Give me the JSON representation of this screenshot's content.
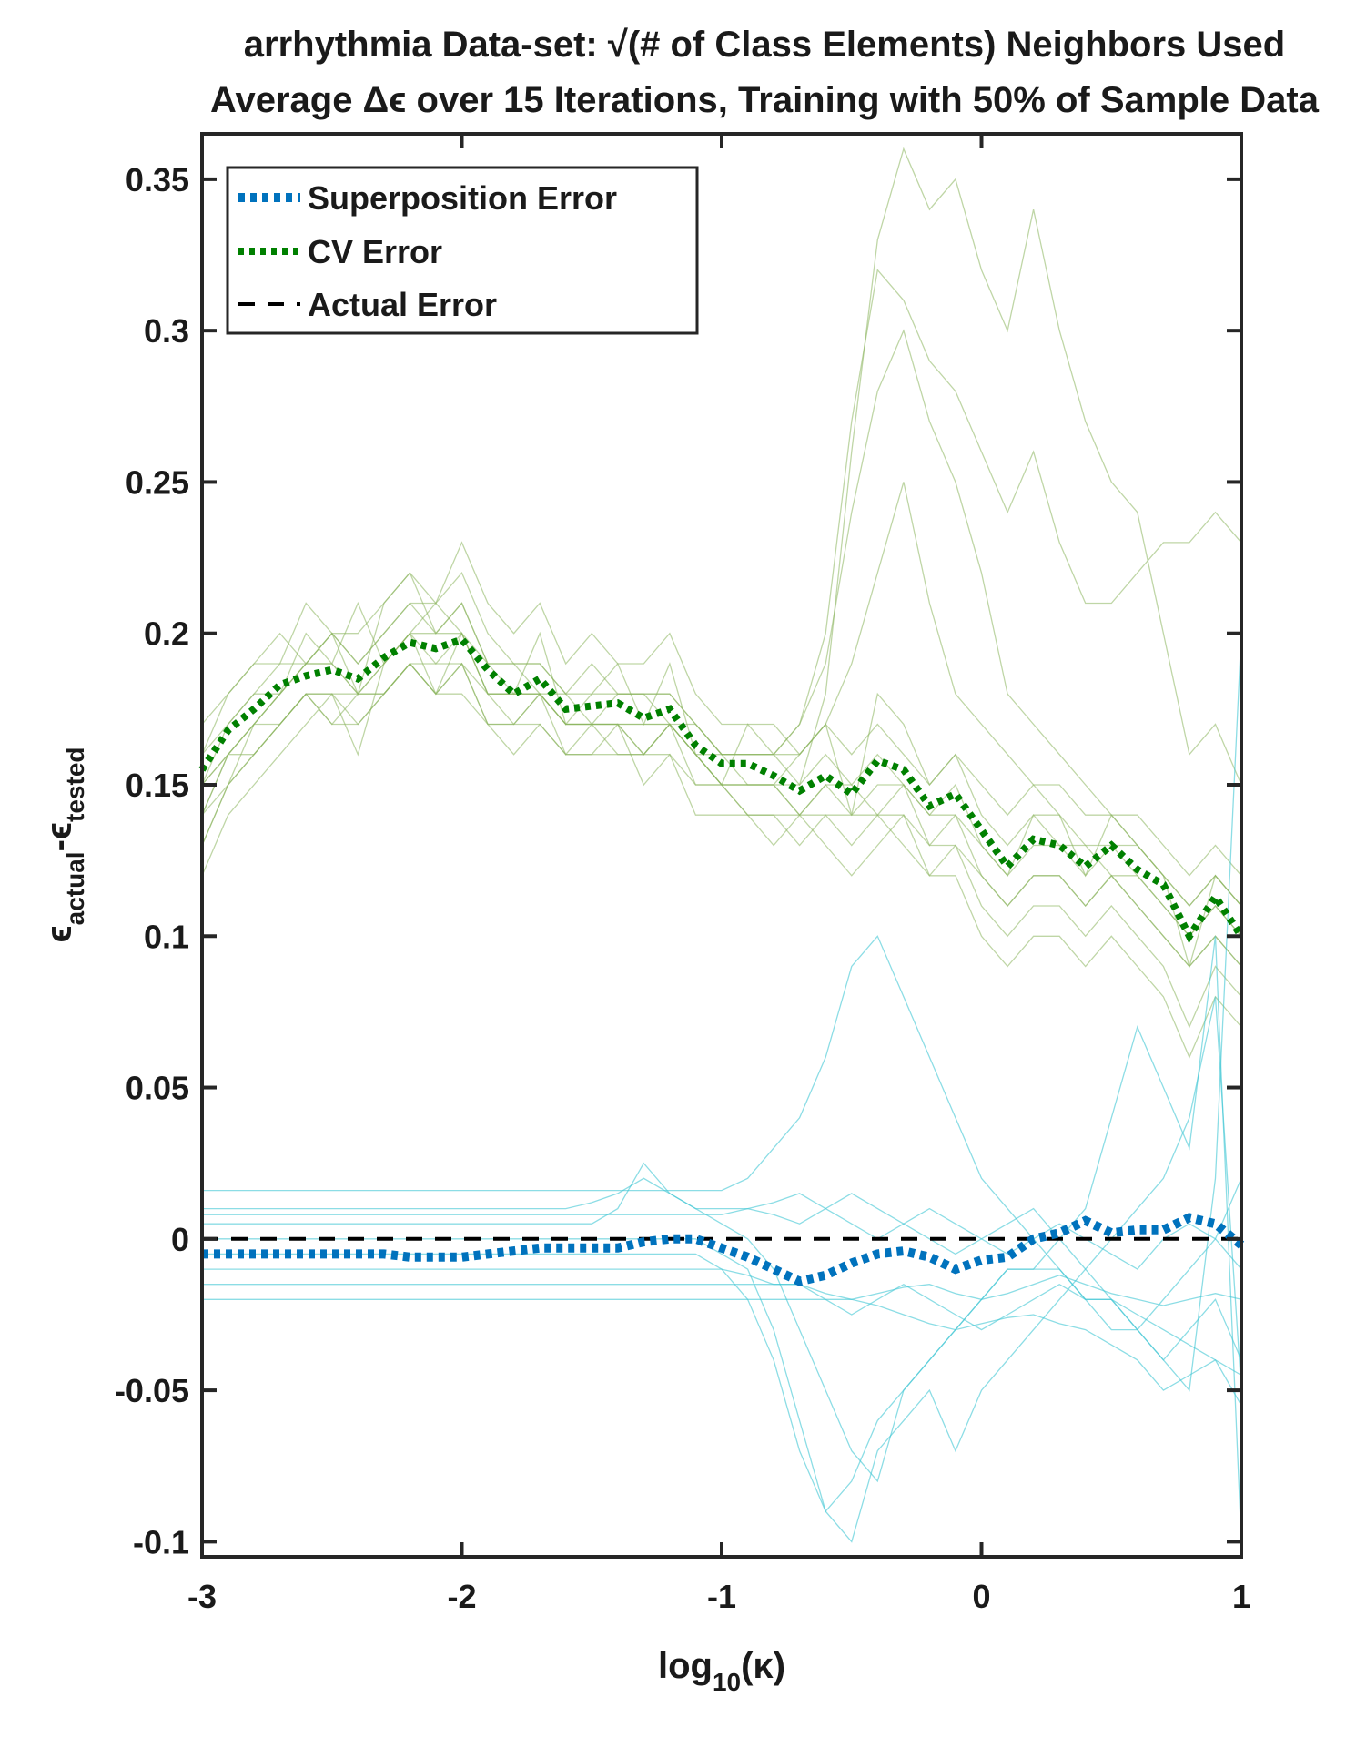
{
  "chart_data": {
    "type": "line",
    "title": "arrhythmia Data-set: √(# of Class Elements) Neighbors Used",
    "subtitle": "Average Δϵ over 15 Iterations, Training with 50% of Sample Data",
    "xlabel": {
      "base": "log",
      "sub": "10",
      "rest": "(κ)"
    },
    "ylabel": {
      "eps1": "ϵ",
      "sub1": "actual",
      "minus": "-",
      "eps2": "ϵ",
      "sub2": "tested"
    },
    "xlim": [
      -3,
      1
    ],
    "ylim": [
      -0.105,
      0.365
    ],
    "x_ticks": [
      -3,
      -2,
      -1,
      0,
      1
    ],
    "x_tick_labels": [
      "-3",
      "-2",
      "-1",
      "0",
      "1"
    ],
    "y_ticks": [
      -0.1,
      -0.05,
      0,
      0.05,
      0.1,
      0.15,
      0.2,
      0.25,
      0.3,
      0.35
    ],
    "y_tick_labels": [
      "-0.1",
      "-0.05",
      "0",
      "0.05",
      "0.1",
      "0.15",
      "0.2",
      "0.25",
      "0.3",
      "0.35"
    ],
    "grid": false,
    "legend_position": "top-left",
    "colors": {
      "superposition": "#0072bd",
      "cv": "#008000",
      "actual": "#000000",
      "superposition_iterations": "#3fc6d3",
      "cv_iterations": "#8ab55c"
    },
    "x": [
      -3.0,
      -2.9,
      -2.8,
      -2.7,
      -2.6,
      -2.5,
      -2.4,
      -2.3,
      -2.2,
      -2.1,
      -2.0,
      -1.9,
      -1.8,
      -1.7,
      -1.6,
      -1.5,
      -1.4,
      -1.3,
      -1.2,
      -1.1,
      -1.0,
      -0.9,
      -0.8,
      -0.7,
      -0.6,
      -0.5,
      -0.4,
      -0.3,
      -0.2,
      -0.1,
      0.0,
      0.1,
      0.2,
      0.3,
      0.4,
      0.5,
      0.6,
      0.7,
      0.8,
      0.9,
      1.0
    ],
    "series": [
      {
        "name": "Superposition Error",
        "style": "dotted-thick",
        "values": [
          -0.005,
          -0.005,
          -0.005,
          -0.005,
          -0.005,
          -0.005,
          -0.005,
          -0.005,
          -0.006,
          -0.006,
          -0.006,
          -0.005,
          -0.004,
          -0.003,
          -0.003,
          -0.003,
          -0.003,
          -0.001,
          0.0,
          0.0,
          -0.003,
          -0.006,
          -0.01,
          -0.014,
          -0.012,
          -0.008,
          -0.005,
          -0.004,
          -0.006,
          -0.01,
          -0.007,
          -0.006,
          0.0,
          0.002,
          0.006,
          0.002,
          0.003,
          0.003,
          0.007,
          0.005,
          -0.002
        ]
      },
      {
        "name": "CV Error",
        "style": "dotted-thick",
        "values": [
          0.155,
          0.168,
          0.175,
          0.183,
          0.186,
          0.188,
          0.185,
          0.192,
          0.197,
          0.195,
          0.198,
          0.188,
          0.18,
          0.185,
          0.175,
          0.176,
          0.177,
          0.172,
          0.175,
          0.163,
          0.157,
          0.157,
          0.153,
          0.148,
          0.153,
          0.147,
          0.158,
          0.155,
          0.143,
          0.147,
          0.135,
          0.123,
          0.132,
          0.13,
          0.123,
          0.13,
          0.122,
          0.117,
          0.1,
          0.113,
          0.1
        ]
      },
      {
        "name": "Actual Error",
        "style": "dashed",
        "values": [
          0,
          0,
          0,
          0,
          0,
          0,
          0,
          0,
          0,
          0,
          0,
          0,
          0,
          0,
          0,
          0,
          0,
          0,
          0,
          0,
          0,
          0,
          0,
          0,
          0,
          0,
          0,
          0,
          0,
          0,
          0,
          0,
          0,
          0,
          0,
          0,
          0,
          0,
          0,
          0,
          0
        ]
      }
    ],
    "iteration_series": {
      "cv": [
        [
          0.13,
          0.15,
          0.17,
          0.18,
          0.2,
          0.19,
          0.21,
          0.19,
          0.2,
          0.21,
          0.2,
          0.19,
          0.18,
          0.2,
          0.17,
          0.18,
          0.19,
          0.17,
          0.19,
          0.16,
          0.15,
          0.17,
          0.16,
          0.16,
          0.17,
          0.14,
          0.18,
          0.17,
          0.15,
          0.16,
          0.14,
          0.13,
          0.14,
          0.14,
          0.12,
          0.14,
          0.13,
          0.12,
          0.09,
          0.12,
          0.11
        ],
        [
          0.17,
          0.18,
          0.19,
          0.2,
          0.19,
          0.2,
          0.18,
          0.21,
          0.22,
          0.2,
          0.21,
          0.19,
          0.19,
          0.18,
          0.18,
          0.17,
          0.18,
          0.18,
          0.17,
          0.17,
          0.16,
          0.15,
          0.15,
          0.14,
          0.15,
          0.15,
          0.14,
          0.15,
          0.13,
          0.14,
          0.12,
          0.11,
          0.12,
          0.12,
          0.11,
          0.12,
          0.11,
          0.1,
          0.09,
          0.1,
          0.09
        ],
        [
          0.14,
          0.16,
          0.16,
          0.17,
          0.18,
          0.17,
          0.17,
          0.18,
          0.19,
          0.18,
          0.19,
          0.17,
          0.17,
          0.18,
          0.16,
          0.17,
          0.16,
          0.16,
          0.17,
          0.15,
          0.15,
          0.14,
          0.14,
          0.13,
          0.14,
          0.13,
          0.14,
          0.13,
          0.12,
          0.13,
          0.11,
          0.1,
          0.11,
          0.11,
          0.1,
          0.11,
          0.1,
          0.09,
          0.07,
          0.09,
          0.08
        ],
        [
          0.16,
          0.17,
          0.18,
          0.19,
          0.19,
          0.2,
          0.19,
          0.2,
          0.21,
          0.21,
          0.22,
          0.2,
          0.19,
          0.19,
          0.18,
          0.19,
          0.18,
          0.18,
          0.18,
          0.17,
          0.16,
          0.16,
          0.16,
          0.15,
          0.16,
          0.15,
          0.16,
          0.15,
          0.14,
          0.15,
          0.13,
          0.12,
          0.14,
          0.13,
          0.13,
          0.13,
          0.13,
          0.12,
          0.11,
          0.12,
          0.11
        ],
        [
          0.15,
          0.16,
          0.17,
          0.17,
          0.18,
          0.18,
          0.18,
          0.18,
          0.19,
          0.19,
          0.19,
          0.18,
          0.17,
          0.18,
          0.17,
          0.17,
          0.17,
          0.16,
          0.17,
          0.16,
          0.15,
          0.15,
          0.15,
          0.14,
          0.15,
          0.14,
          0.15,
          0.15,
          0.14,
          0.14,
          0.13,
          0.12,
          0.13,
          0.13,
          0.12,
          0.13,
          0.12,
          0.11,
          0.1,
          0.11,
          0.1
        ],
        [
          0.12,
          0.14,
          0.15,
          0.16,
          0.17,
          0.18,
          0.16,
          0.19,
          0.2,
          0.18,
          0.19,
          0.17,
          0.16,
          0.17,
          0.16,
          0.16,
          0.17,
          0.15,
          0.16,
          0.14,
          0.14,
          0.14,
          0.13,
          0.14,
          0.13,
          0.12,
          0.13,
          0.14,
          0.12,
          0.12,
          0.1,
          0.09,
          0.1,
          0.1,
          0.09,
          0.1,
          0.09,
          0.08,
          0.06,
          0.08,
          0.07
        ],
        [
          0.16,
          0.18,
          0.19,
          0.19,
          0.21,
          0.2,
          0.2,
          0.21,
          0.22,
          0.21,
          0.23,
          0.21,
          0.2,
          0.21,
          0.19,
          0.2,
          0.19,
          0.19,
          0.2,
          0.18,
          0.17,
          0.17,
          0.17,
          0.16,
          0.17,
          0.16,
          0.17,
          0.16,
          0.15,
          0.16,
          0.15,
          0.14,
          0.15,
          0.15,
          0.14,
          0.14,
          0.14,
          0.13,
          0.12,
          0.13,
          0.12
        ],
        [
          0.14,
          0.15,
          0.16,
          0.17,
          0.18,
          0.17,
          0.18,
          0.18,
          0.19,
          0.18,
          0.18,
          0.17,
          0.17,
          0.17,
          0.16,
          0.16,
          0.16,
          0.16,
          0.16,
          0.15,
          0.15,
          0.14,
          0.14,
          0.14,
          0.14,
          0.14,
          0.14,
          0.14,
          0.13,
          0.13,
          0.12,
          0.11,
          0.12,
          0.12,
          0.11,
          0.12,
          0.11,
          0.1,
          0.09,
          0.1,
          0.09
        ],
        [
          0.15,
          0.17,
          0.18,
          0.18,
          0.19,
          0.2,
          0.19,
          0.2,
          0.21,
          0.2,
          0.21,
          0.19,
          0.19,
          0.19,
          0.18,
          0.18,
          0.18,
          0.18,
          0.18,
          0.17,
          0.16,
          0.16,
          0.16,
          0.17,
          0.19,
          0.24,
          0.28,
          0.3,
          0.27,
          0.25,
          0.22,
          0.18,
          0.17,
          0.16,
          0.15,
          0.14,
          0.13,
          0.12,
          0.11,
          0.12,
          0.11
        ],
        [
          0.13,
          0.15,
          0.16,
          0.17,
          0.18,
          0.18,
          0.17,
          0.18,
          0.19,
          0.18,
          0.2,
          0.18,
          0.18,
          0.18,
          0.17,
          0.17,
          0.17,
          0.16,
          0.17,
          0.16,
          0.15,
          0.15,
          0.15,
          0.15,
          0.18,
          0.26,
          0.33,
          0.36,
          0.34,
          0.35,
          0.32,
          0.3,
          0.34,
          0.3,
          0.27,
          0.25,
          0.24,
          0.2,
          0.16,
          0.17,
          0.15
        ],
        [
          0.14,
          0.16,
          0.17,
          0.18,
          0.19,
          0.19,
          0.18,
          0.19,
          0.2,
          0.19,
          0.2,
          0.18,
          0.18,
          0.18,
          0.17,
          0.17,
          0.17,
          0.17,
          0.17,
          0.16,
          0.16,
          0.16,
          0.16,
          0.17,
          0.2,
          0.27,
          0.32,
          0.31,
          0.29,
          0.28,
          0.26,
          0.24,
          0.26,
          0.23,
          0.21,
          0.21,
          0.22,
          0.23,
          0.23,
          0.24,
          0.23
        ],
        [
          0.15,
          0.16,
          0.17,
          0.18,
          0.19,
          0.19,
          0.18,
          0.19,
          0.2,
          0.2,
          0.2,
          0.18,
          0.18,
          0.18,
          0.17,
          0.17,
          0.17,
          0.17,
          0.17,
          0.16,
          0.15,
          0.15,
          0.15,
          0.16,
          0.17,
          0.19,
          0.22,
          0.25,
          0.21,
          0.18,
          0.17,
          0.16,
          0.15,
          0.14,
          0.13,
          0.12,
          0.12,
          0.11,
          0.1,
          0.11,
          0.1
        ]
      ],
      "superposition": [
        [
          0.016,
          0.016,
          0.016,
          0.016,
          0.016,
          0.016,
          0.016,
          0.016,
          0.016,
          0.016,
          0.016,
          0.016,
          0.016,
          0.016,
          0.016,
          0.016,
          0.016,
          0.016,
          0.016,
          0.016,
          0.016,
          0.02,
          0.03,
          0.04,
          0.06,
          0.09,
          0.1,
          0.08,
          0.06,
          0.04,
          0.02,
          0.01,
          0.0,
          -0.01,
          -0.02,
          -0.03,
          -0.03,
          -0.04,
          -0.03,
          -0.02,
          -0.04
        ],
        [
          0.01,
          0.01,
          0.01,
          0.01,
          0.01,
          0.01,
          0.01,
          0.01,
          0.01,
          0.01,
          0.01,
          0.01,
          0.01,
          0.01,
          0.01,
          0.012,
          0.015,
          0.02,
          0.015,
          0.01,
          0.01,
          0.01,
          0.008,
          0.005,
          0.01,
          0.015,
          0.01,
          0.005,
          0.0,
          -0.005,
          0.0,
          0.005,
          0.01,
          0.0,
          -0.01,
          -0.02,
          -0.03,
          -0.04,
          -0.05,
          0.02,
          0.2
        ],
        [
          0.005,
          0.005,
          0.005,
          0.005,
          0.005,
          0.005,
          0.005,
          0.005,
          0.005,
          0.005,
          0.005,
          0.005,
          0.005,
          0.005,
          0.005,
          0.005,
          0.01,
          0.025,
          0.015,
          0.01,
          0.005,
          0.0,
          -0.01,
          -0.03,
          -0.05,
          -0.07,
          -0.08,
          -0.05,
          -0.04,
          -0.03,
          -0.02,
          -0.01,
          -0.01,
          0.0,
          0.01,
          0.04,
          0.07,
          0.05,
          0.03,
          0.1,
          -0.1
        ],
        [
          0.0,
          0.0,
          0.0,
          0.0,
          0.0,
          0.0,
          0.0,
          0.0,
          0.0,
          0.0,
          0.0,
          0.0,
          0.0,
          0.0,
          0.0,
          0.0,
          0.0,
          0.0,
          0.0,
          0.0,
          -0.005,
          -0.01,
          -0.03,
          -0.06,
          -0.09,
          -0.08,
          -0.06,
          -0.05,
          -0.04,
          -0.03,
          -0.02,
          -0.01,
          -0.01,
          -0.01,
          -0.02,
          -0.02,
          -0.03,
          -0.02,
          -0.01,
          0.0,
          0.02
        ],
        [
          -0.005,
          -0.005,
          -0.005,
          -0.005,
          -0.005,
          -0.005,
          -0.005,
          -0.005,
          -0.005,
          -0.005,
          -0.005,
          -0.005,
          -0.005,
          -0.005,
          -0.005,
          -0.005,
          -0.005,
          -0.005,
          -0.005,
          -0.005,
          -0.01,
          -0.02,
          -0.04,
          -0.07,
          -0.09,
          -0.1,
          -0.07,
          -0.06,
          -0.05,
          -0.07,
          -0.05,
          -0.04,
          -0.03,
          -0.02,
          -0.01,
          0.0,
          0.01,
          0.02,
          0.04,
          0.08,
          -0.05
        ],
        [
          -0.01,
          -0.01,
          -0.01,
          -0.01,
          -0.01,
          -0.01,
          -0.01,
          -0.01,
          -0.01,
          -0.01,
          -0.01,
          -0.01,
          -0.01,
          -0.01,
          -0.01,
          -0.01,
          -0.01,
          -0.01,
          -0.01,
          -0.01,
          -0.01,
          -0.012,
          -0.015,
          -0.015,
          -0.02,
          -0.025,
          -0.02,
          -0.015,
          -0.02,
          -0.025,
          -0.03,
          -0.025,
          -0.02,
          -0.015,
          -0.02,
          -0.02,
          -0.025,
          -0.03,
          -0.035,
          -0.04,
          -0.045
        ],
        [
          -0.015,
          -0.015,
          -0.015,
          -0.015,
          -0.015,
          -0.015,
          -0.015,
          -0.015,
          -0.015,
          -0.015,
          -0.015,
          -0.015,
          -0.015,
          -0.015,
          -0.015,
          -0.015,
          -0.015,
          -0.015,
          -0.015,
          -0.015,
          -0.015,
          -0.015,
          -0.015,
          -0.015,
          -0.018,
          -0.02,
          -0.018,
          -0.016,
          -0.015,
          -0.018,
          -0.02,
          -0.018,
          -0.015,
          -0.012,
          -0.015,
          -0.018,
          -0.02,
          -0.022,
          -0.02,
          -0.018,
          -0.02
        ],
        [
          -0.02,
          -0.02,
          -0.02,
          -0.02,
          -0.02,
          -0.02,
          -0.02,
          -0.02,
          -0.02,
          -0.02,
          -0.02,
          -0.02,
          -0.02,
          -0.02,
          -0.02,
          -0.02,
          -0.02,
          -0.02,
          -0.02,
          -0.02,
          -0.02,
          -0.02,
          -0.02,
          -0.02,
          -0.02,
          -0.02,
          -0.022,
          -0.025,
          -0.028,
          -0.03,
          -0.028,
          -0.026,
          -0.025,
          -0.028,
          -0.03,
          -0.035,
          -0.04,
          -0.05,
          -0.045,
          -0.04,
          -0.055
        ],
        [
          0.008,
          0.008,
          0.008,
          0.008,
          0.008,
          0.008,
          0.008,
          0.008,
          0.008,
          0.008,
          0.008,
          0.008,
          0.008,
          0.008,
          0.008,
          0.008,
          0.008,
          0.008,
          0.008,
          0.008,
          0.008,
          0.01,
          0.012,
          0.015,
          0.01,
          0.005,
          0.0,
          0.005,
          0.01,
          0.005,
          0.0,
          -0.005,
          0.0,
          0.005,
          0.0,
          -0.005,
          -0.01,
          0.0,
          0.005,
          0.0,
          -0.01
        ]
      ]
    },
    "legend": [
      {
        "label": "Superposition Error",
        "series": "Superposition Error"
      },
      {
        "label": "CV Error",
        "series": "CV Error"
      },
      {
        "label": "Actual Error",
        "series": "Actual Error"
      }
    ]
  }
}
